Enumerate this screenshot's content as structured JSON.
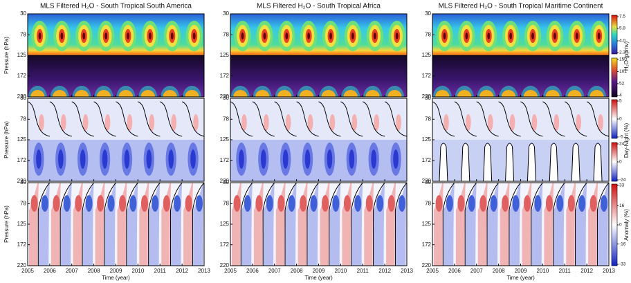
{
  "chart_data": [
    {
      "type": "heatmap",
      "title": "MLS Filtered H₂O - South Tropical South America",
      "xlabel": "Time (year)",
      "xlim": [
        2005,
        2013
      ],
      "xticks": [
        2005,
        2006,
        2007,
        2008,
        2009,
        2010,
        2011,
        2012,
        2013
      ],
      "ylim": [
        220,
        30
      ],
      "yticks": [
        30,
        78,
        125,
        172,
        220
      ]
    },
    {
      "type": "heatmap",
      "title": "MLS Filtered H₂O - South Tropical Africa",
      "xlabel": "Time (year)",
      "xlim": [
        2005,
        2013
      ],
      "xticks": [
        2005,
        2006,
        2007,
        2008,
        2009,
        2010,
        2011,
        2012,
        2013
      ],
      "ylim": [
        220,
        30
      ],
      "yticks": [
        30,
        78,
        125,
        172,
        220
      ]
    },
    {
      "type": "heatmap",
      "title": "MLS Filtered H₂O - South Tropical Maritime Continent",
      "xlabel": "Time (year)",
      "xlim": [
        2005,
        2013
      ],
      "xticks": [
        2005,
        2006,
        2007,
        2008,
        2009,
        2010,
        2011,
        2012,
        2013
      ],
      "ylim": [
        220,
        30
      ],
      "yticks": [
        30,
        78,
        125,
        172,
        220
      ]
    }
  ],
  "ylabel": "Pressure (hPa)",
  "colorbars": [
    {
      "label": "H₂O (ppmv)",
      "scales": [
        {
          "ticks": [
            7.5,
            5.8,
            {
              "value": 4,
              "label": "4.0"
            },
            2.3
          ]
        },
        {
          "ticks": [
            150,
            101,
            52,
            4
          ]
        }
      ]
    },
    {
      "label": "Day-Night (%)",
      "scales": [
        {
          "ticks": [
            5,
            0,
            -5
          ]
        },
        {
          "ticks": [
            24,
            0,
            -24
          ]
        }
      ]
    },
    {
      "label": "Anomaly (%)",
      "scales": [
        {
          "ticks": [
            33,
            16,
            0,
            -16,
            -33
          ]
        }
      ]
    }
  ]
}
